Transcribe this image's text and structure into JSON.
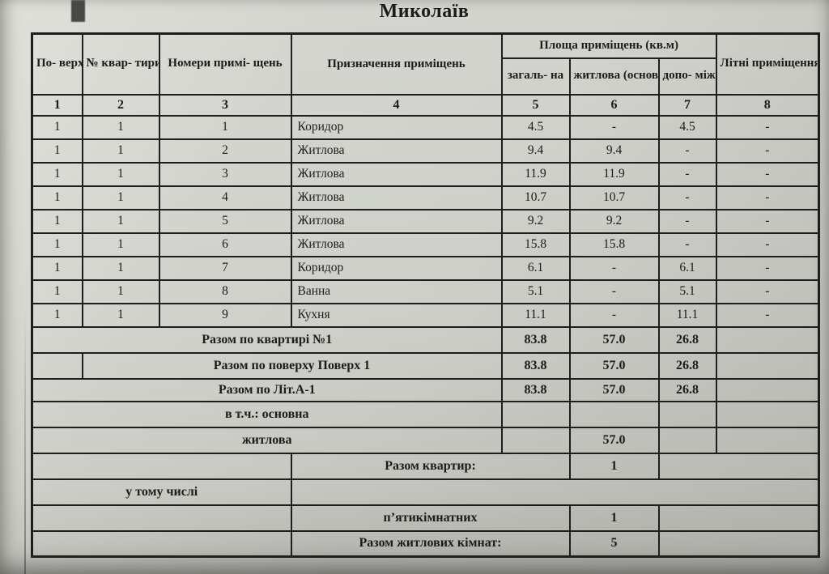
{
  "title": "Миколаїв",
  "table": {
    "header": {
      "col_floors": "По-\nверхи",
      "col_apartment": "№ квар-\nтири",
      "col_room_numbers": "Номери примі-\nщень",
      "col_purpose": "Призначення приміщень",
      "area_group": "Площа приміщень (кв.м)",
      "area_total": "загаль-\nна",
      "area_living": "житлова\n(основна)",
      "area_aux": "допо-\nміжна",
      "col_summer": "Літні\nприміщення,\nплощадки",
      "numbers": [
        "1",
        "2",
        "3",
        "4",
        "5",
        "6",
        "7",
        "8"
      ]
    },
    "rows": [
      {
        "floor": "1",
        "apt": "1",
        "num": "1",
        "purpose": "Коридор",
        "total": "4.5",
        "living": "-",
        "aux": "4.5",
        "summer": "-"
      },
      {
        "floor": "1",
        "apt": "1",
        "num": "2",
        "purpose": "Житлова",
        "total": "9.4",
        "living": "9.4",
        "aux": "-",
        "summer": "-"
      },
      {
        "floor": "1",
        "apt": "1",
        "num": "3",
        "purpose": "Житлова",
        "total": "11.9",
        "living": "11.9",
        "aux": "-",
        "summer": "-"
      },
      {
        "floor": "1",
        "apt": "1",
        "num": "4",
        "purpose": "Житлова",
        "total": "10.7",
        "living": "10.7",
        "aux": "-",
        "summer": "-"
      },
      {
        "floor": "1",
        "apt": "1",
        "num": "5",
        "purpose": "Житлова",
        "total": "9.2",
        "living": "9.2",
        "aux": "-",
        "summer": "-"
      },
      {
        "floor": "1",
        "apt": "1",
        "num": "6",
        "purpose": "Житлова",
        "total": "15.8",
        "living": "15.8",
        "aux": "-",
        "summer": "-"
      },
      {
        "floor": "1",
        "apt": "1",
        "num": "7",
        "purpose": "Коридор",
        "total": "6.1",
        "living": "-",
        "aux": "6.1",
        "summer": "-"
      },
      {
        "floor": "1",
        "apt": "1",
        "num": "8",
        "purpose": "Ванна",
        "total": "5.1",
        "living": "-",
        "aux": "5.1",
        "summer": "-"
      },
      {
        "floor": "1",
        "apt": "1",
        "num": "9",
        "purpose": "Кухня",
        "total": "11.1",
        "living": "-",
        "aux": "11.1",
        "summer": "-"
      }
    ],
    "summary": {
      "apartment": {
        "label": "Разом по квартирі №1",
        "total": "83.8",
        "living": "57.0",
        "aux": "26.8"
      },
      "floor": {
        "label": "Разом по поверху Поверх 1",
        "total": "83.8",
        "living": "57.0",
        "aux": "26.8"
      },
      "letter": {
        "label": "Разом по Літ.А-1",
        "total": "83.8",
        "living": "57.0",
        "aux": "26.8"
      },
      "incl_main": {
        "label": "в т.ч.: основна"
      },
      "incl_living": {
        "label": "житлова",
        "living": "57.0"
      },
      "apartments_total": {
        "label": "Разом квартир:",
        "value": "1"
      },
      "including": {
        "label": "у тому числі"
      },
      "five_room": {
        "label": "п’ятикімнатних",
        "value": "1"
      },
      "living_rooms_total": {
        "label": "Разом житлових кімнат:",
        "value": "5"
      }
    }
  }
}
